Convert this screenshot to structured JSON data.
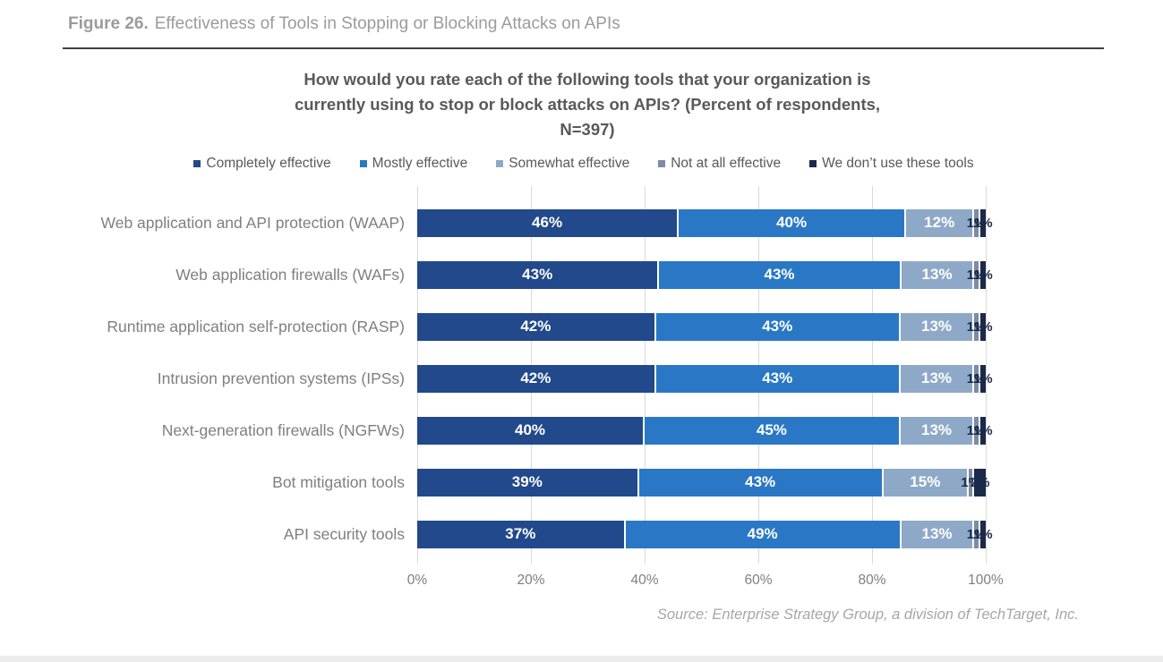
{
  "figure": {
    "label": "Figure 26.",
    "title": "Effectiveness of Tools in Stopping or Blocking Attacks on APIs"
  },
  "chart_data": {
    "type": "bar",
    "stacked": true,
    "orientation": "horizontal",
    "title": "How would you rate each of the following tools that your organization is currently using to stop or block attacks on APIs? (Percent of respondents, N=397)",
    "title_lines": [
      "How would you rate each of the following tools that your organization is",
      "currently using to stop or block attacks on APIs? (Percent of respondents,",
      "N=397)"
    ],
    "categories": [
      "Web application and API protection (WAAP)",
      "Web application firewalls (WAFs)",
      "Runtime application self-protection (RASP)",
      "Intrusion prevention systems (IPSs)",
      "Next-generation firewalls (NGFWs)",
      "Bot mitigation tools",
      "API security tools"
    ],
    "series": [
      {
        "name": "Completely effective",
        "color": "#21498B",
        "values": [
          46,
          43,
          42,
          42,
          40,
          39,
          37
        ]
      },
      {
        "name": "Mostly effective",
        "color": "#2A78C5",
        "values": [
          40,
          43,
          43,
          43,
          45,
          43,
          49
        ]
      },
      {
        "name": "Somewhat effective",
        "color": "#8EA9C8",
        "values": [
          12,
          13,
          13,
          13,
          13,
          15,
          13
        ]
      },
      {
        "name": "Not at all effective",
        "color": "#7D8CA3",
        "values": [
          1,
          1,
          1,
          1,
          1,
          1,
          1
        ]
      },
      {
        "name": "We don’t use these tools",
        "color": "#1B2A4A",
        "values": [
          1,
          1,
          1,
          1,
          1,
          2,
          1
        ]
      }
    ],
    "value_suffix": "%",
    "x_ticks": [
      "0%",
      "20%",
      "40%",
      "60%",
      "80%",
      "100%"
    ],
    "xlim": [
      0,
      100
    ],
    "grid": true,
    "legend_position": "top"
  },
  "source": "Source: Enterprise Strategy Group, a division of TechTarget, Inc.",
  "colors": {
    "title_text": "#595959",
    "axis_text": "#7f7f7f",
    "header_text": "#9b9b9b",
    "gridline": "#d9d9d9",
    "source_text": "#a6a6a6"
  }
}
